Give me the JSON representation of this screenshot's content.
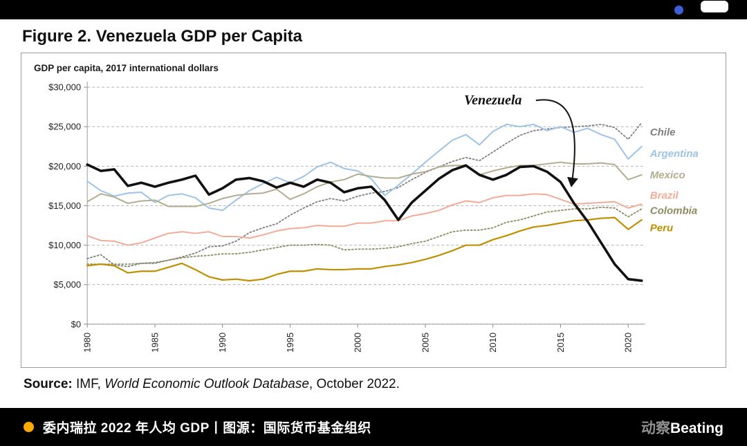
{
  "top_bar": {
    "accent_color": "#3d5fd6"
  },
  "header": {
    "title": "Figure 2. Venezuela GDP per Capita"
  },
  "chart_data": {
    "type": "line",
    "title": "GDP per capita, 2017 international dollars",
    "xlabel": "",
    "ylabel": "GDP per capita, 2017 international dollars",
    "ylim": [
      0,
      30000
    ],
    "ytick_step": 5000,
    "ytick_labels": [
      "$0",
      "$5,000",
      "$10,000",
      "$15,000",
      "$20,000",
      "$25,000",
      "$30,000"
    ],
    "xticks": [
      1980,
      1985,
      1990,
      1995,
      2000,
      2005,
      2010,
      2015,
      2020
    ],
    "grid": "dashed horizontal gridlines",
    "legend_position": "right-edge series labels",
    "x": [
      1980,
      1981,
      1982,
      1983,
      1984,
      1985,
      1986,
      1987,
      1988,
      1989,
      1990,
      1991,
      1992,
      1993,
      1994,
      1995,
      1996,
      1997,
      1998,
      1999,
      2000,
      2001,
      2002,
      2003,
      2004,
      2005,
      2006,
      2007,
      2008,
      2009,
      2010,
      2011,
      2012,
      2013,
      2014,
      2015,
      2016,
      2017,
      2018,
      2019,
      2020,
      2021
    ],
    "series": [
      {
        "name": "Chile",
        "color": "#7f7f7f",
        "dash": "2 3",
        "width": 1.8,
        "label_value": 24300,
        "values": [
          8300,
          8800,
          7500,
          7300,
          7700,
          7700,
          8100,
          8500,
          9000,
          9800,
          9900,
          10500,
          11600,
          12200,
          12700,
          13800,
          14700,
          15500,
          15900,
          15600,
          16200,
          16600,
          16800,
          17300,
          18300,
          19200,
          19900,
          20600,
          21100,
          20700,
          21800,
          22900,
          23900,
          24500,
          24700,
          24900,
          25000,
          25100,
          25300,
          24900,
          23400,
          25500
        ]
      },
      {
        "name": "Argentina",
        "color": "#9dc3e6",
        "dash": null,
        "width": 2,
        "label_value": 21600,
        "values": [
          18100,
          16900,
          16200,
          16600,
          16700,
          15400,
          16300,
          16500,
          16000,
          14700,
          14400,
          15700,
          16900,
          17800,
          18600,
          17900,
          18700,
          19900,
          20500,
          19700,
          19400,
          18400,
          16300,
          17600,
          19000,
          20500,
          21900,
          23300,
          24000,
          22700,
          24400,
          25300,
          25000,
          25300,
          24500,
          25000,
          24300,
          24800,
          24000,
          23400,
          20900,
          22500
        ]
      },
      {
        "name": "Mexico",
        "color": "#b3ad8f",
        "dash": null,
        "width": 2,
        "label_value": 18900,
        "values": [
          15500,
          16500,
          16100,
          15300,
          15600,
          15700,
          14900,
          14900,
          14900,
          15300,
          15900,
          16300,
          16500,
          16600,
          17100,
          15800,
          16500,
          17400,
          18000,
          18300,
          19000,
          18700,
          18500,
          18500,
          19000,
          19300,
          19900,
          20100,
          20100,
          18900,
          19400,
          19800,
          20100,
          20100,
          20300,
          20500,
          20300,
          20300,
          20400,
          20200,
          18300,
          18900
        ]
      },
      {
        "name": "Brazil",
        "color": "#f3ab97",
        "dash": null,
        "width": 2,
        "label_value": 16300,
        "values": [
          11200,
          10600,
          10500,
          10000,
          10300,
          10900,
          11500,
          11700,
          11500,
          11700,
          11100,
          11100,
          10900,
          11300,
          11800,
          12100,
          12200,
          12500,
          12400,
          12400,
          12800,
          12800,
          13100,
          13100,
          13700,
          14000,
          14400,
          15100,
          15600,
          15400,
          16000,
          16300,
          16300,
          16500,
          16400,
          15800,
          15200,
          15300,
          15400,
          15500,
          14700,
          15200
        ]
      },
      {
        "name": "Colombia",
        "color": "#8c8c5f",
        "dash": "2 3",
        "width": 1.8,
        "label_value": 14400,
        "values": [
          7600,
          7600,
          7600,
          7600,
          7700,
          7800,
          8100,
          8400,
          8600,
          8700,
          8900,
          8900,
          9100,
          9400,
          9700,
          10000,
          10000,
          10100,
          10000,
          9400,
          9500,
          9500,
          9600,
          9800,
          10200,
          10500,
          11100,
          11700,
          11900,
          11900,
          12200,
          12900,
          13200,
          13700,
          14200,
          14400,
          14600,
          14600,
          14800,
          14700,
          13600,
          14600
        ]
      },
      {
        "name": "Peru",
        "color": "#bf8f00",
        "dash": null,
        "width": 2.2,
        "label_value": 12200,
        "values": [
          7400,
          7600,
          7400,
          6500,
          6700,
          6700,
          7200,
          7700,
          6900,
          6000,
          5600,
          5700,
          5500,
          5700,
          6300,
          6700,
          6700,
          7000,
          6900,
          6900,
          7000,
          7000,
          7300,
          7500,
          7800,
          8200,
          8700,
          9300,
          10000,
          10000,
          10700,
          11200,
          11800,
          12300,
          12500,
          12800,
          13100,
          13200,
          13400,
          13500,
          12000,
          13200
        ]
      },
      {
        "name": "Venezuela",
        "color": "#111111",
        "dash": null,
        "width": 3.6,
        "label_value": null,
        "values": [
          20200,
          19400,
          19600,
          17500,
          17900,
          17400,
          17900,
          18300,
          18800,
          16400,
          17200,
          18300,
          18500,
          18100,
          17300,
          17900,
          17400,
          18300,
          17900,
          16700,
          17200,
          17400,
          15700,
          13200,
          15400,
          16900,
          18400,
          19500,
          20100,
          18900,
          18300,
          18900,
          19900,
          20000,
          19300,
          18000,
          15300,
          13000,
          10300,
          7600,
          5700,
          5500
        ]
      }
    ],
    "annotation": {
      "text": "Venezuela",
      "label_year": 2010,
      "label_value": 27800,
      "arrow_tip_year": 2015.8,
      "arrow_tip_value": 16800
    }
  },
  "source": {
    "prefix": "Source:",
    "mid": " IMF, ",
    "italic": "World Economic Outlook Database",
    "suffix": ", October 2022."
  },
  "footer": {
    "bullet_color": "#ffaa00",
    "caption": "委内瑞拉 2022 年人均 GDP丨图源：国际货币基金组织",
    "brand_gray": "动察",
    "brand_white": "Beating"
  }
}
